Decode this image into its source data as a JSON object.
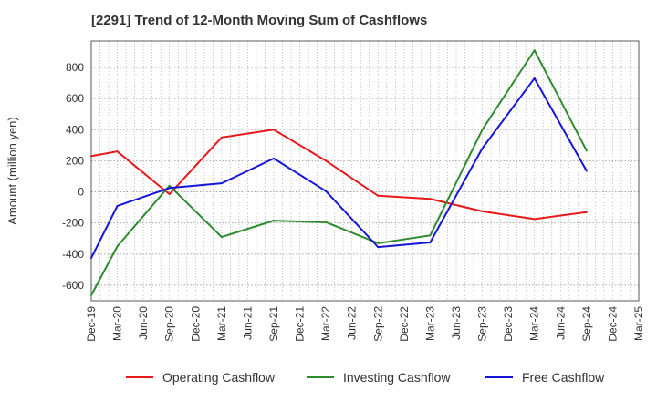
{
  "chart_data": {
    "type": "line",
    "title": "[2291]  Trend of 12-Month Moving Sum of Cashflows",
    "xlabel": "",
    "ylabel": "Amount (million yen)",
    "x_ticks": [
      "Dec-19",
      "Mar-20",
      "Jun-20",
      "Sep-20",
      "Dec-20",
      "Mar-21",
      "Jun-21",
      "Sep-21",
      "Dec-21",
      "Mar-22",
      "Jun-22",
      "Sep-22",
      "Dec-22",
      "Mar-23",
      "Jun-23",
      "Sep-23",
      "Dec-23",
      "Mar-24",
      "Jun-24",
      "Sep-24",
      "Dec-24",
      "Mar-25"
    ],
    "y_ticks": [
      -600,
      -400,
      -200,
      0,
      200,
      400,
      600,
      800
    ],
    "ylim": [
      -700,
      970
    ],
    "grid": true,
    "legend_position": "bottom",
    "series": [
      {
        "name": "Operating Cashflow",
        "color": "#e8191a",
        "x": [
          "Dec-19",
          "Mar-20",
          "Sep-20",
          "Mar-21",
          "Sep-21",
          "Mar-22",
          "Sep-22",
          "Mar-23",
          "Sep-23",
          "Mar-24",
          "Sep-24"
        ],
        "values": [
          230,
          260,
          -15,
          350,
          400,
          200,
          -25,
          -45,
          -125,
          -175,
          -130
        ]
      },
      {
        "name": "Investing Cashflow",
        "color": "#2e8b2e",
        "x": [
          "Dec-19",
          "Mar-20",
          "Sep-20",
          "Mar-21",
          "Sep-21",
          "Mar-22",
          "Sep-22",
          "Mar-23",
          "Sep-23",
          "Mar-24",
          "Sep-24"
        ],
        "values": [
          -665,
          -350,
          40,
          -290,
          -185,
          -195,
          -330,
          -280,
          400,
          910,
          265
        ]
      },
      {
        "name": "Free Cashflow",
        "color": "#1515d8",
        "x": [
          "Dec-19",
          "Mar-20",
          "Sep-20",
          "Mar-21",
          "Sep-21",
          "Mar-22",
          "Sep-22",
          "Mar-23",
          "Sep-23",
          "Mar-24",
          "Sep-24"
        ],
        "values": [
          -425,
          -90,
          25,
          55,
          215,
          5,
          -355,
          -325,
          280,
          730,
          135
        ]
      }
    ]
  }
}
